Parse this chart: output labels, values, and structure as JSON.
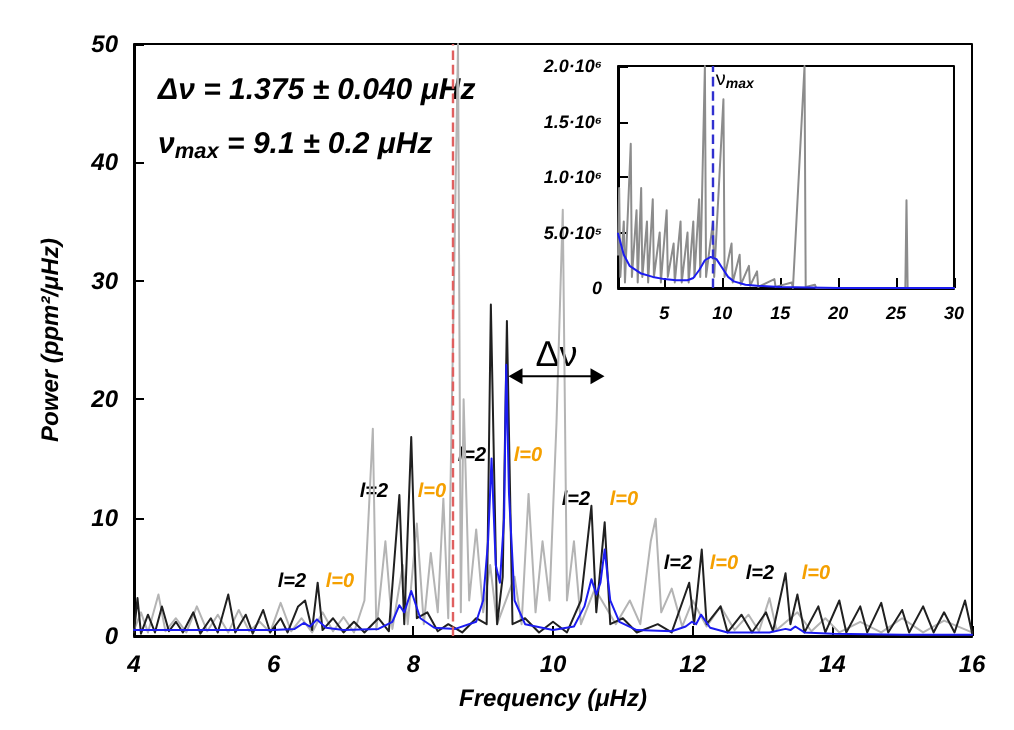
{
  "chart_data": [
    {
      "type": "line",
      "xlabel": "Frequency (μHz)",
      "ylabel": "Power (ppm²/μHz)",
      "marker": "none",
      "annotations": [
        "Δν = 1.375 ± 0.040 μHz",
        "ν$_{max}$ = 9.1 ± 0.2 μHz",
        "l=2",
        "l=0",
        "l=2",
        "l=0",
        "l=2",
        "l=0",
        "l=2",
        "l=0",
        "l=2",
        "l=0",
        "l=2",
        "l=0",
        {
          "text": "Δν",
          "x": 10.05,
          "y": 23.8
        }
      ],
      "xlim": [
        4,
        16
      ],
      "xticks": [
        4,
        6,
        8,
        10,
        12,
        14,
        16
      ],
      "ylim": [
        0,
        50
      ],
      "yticks": [
        0,
        10,
        20,
        30,
        40,
        50
      ],
      "ref_lines": [
        {
          "axis": "x",
          "value": 8.55,
          "color": "#e06060",
          "line_style": "dashed"
        }
      ],
      "series": [
        {
          "color": "#b4b4b4",
          "x": [
            4.0,
            4.1,
            4.2,
            4.35,
            4.45,
            4.6,
            4.75,
            4.9,
            5.05,
            5.2,
            5.35,
            5.5,
            5.65,
            5.8,
            5.95,
            6.1,
            6.25,
            6.4,
            6.55,
            6.7,
            6.85,
            7.0,
            7.15,
            7.3,
            7.42,
            7.47,
            7.6,
            7.7,
            7.85,
            7.92,
            8.05,
            8.15,
            8.25,
            8.35,
            8.43,
            8.5,
            8.64,
            8.68,
            8.72,
            8.8,
            8.9,
            9.0,
            9.1,
            9.2,
            9.45,
            9.55,
            9.65,
            9.75,
            9.85,
            9.95,
            10.05,
            10.14,
            10.2,
            10.3,
            10.4,
            10.6,
            10.9,
            11.1,
            11.25,
            11.4,
            11.47,
            11.55,
            11.7,
            11.85,
            12.0,
            12.2,
            12.4,
            12.6,
            12.8,
            12.95,
            13.1,
            13.2,
            13.5,
            13.7,
            13.9,
            14.1,
            14.4,
            14.7,
            15.0,
            15.3,
            15.6,
            16.0
          ],
          "values": [
            0.5,
            2.0,
            0.3,
            3.5,
            0.4,
            1.5,
            0.3,
            2.5,
            0.4,
            1.8,
            0.3,
            2.2,
            0.4,
            1.2,
            0.3,
            2.8,
            0.4,
            1.5,
            0.3,
            2.0,
            0.4,
            1.6,
            0.3,
            3.0,
            17.5,
            0.5,
            8.0,
            0.6,
            6.0,
            1.0,
            9.5,
            1.0,
            7.0,
            2.0,
            11.6,
            1.5,
            50,
            2.0,
            20,
            3.0,
            9.0,
            2.0,
            6,
            1.0,
            5.0,
            1.0,
            12,
            2.0,
            8,
            3,
            18,
            36,
            3.0,
            8.0,
            1.0,
            4.0,
            1.0,
            3.0,
            1.0,
            8.0,
            9.9,
            2.0,
            4.0,
            0.8,
            3.0,
            0.8,
            2.5,
            0.5,
            1.8,
            0.4,
            3.2,
            0.5,
            2.0,
            0.4,
            1.5,
            0.3,
            1.2,
            0.3,
            1.5,
            0.3,
            1.3,
            0.3
          ]
        },
        {
          "color": "#202020",
          "x": [
            4.0,
            4.05,
            4.1,
            4.2,
            4.3,
            4.4,
            4.5,
            4.6,
            4.7,
            4.85,
            4.95,
            5.1,
            5.2,
            5.35,
            5.45,
            5.6,
            5.7,
            5.85,
            5.95,
            6.1,
            6.2,
            6.35,
            6.45,
            6.55,
            6.63,
            6.7,
            6.85,
            7.0,
            7.15,
            7.3,
            7.5,
            7.65,
            7.8,
            7.87,
            7.97,
            8.05,
            8.2,
            8.35,
            8.5,
            8.7,
            8.9,
            9.05,
            9.11,
            9.2,
            9.28,
            9.34,
            9.42,
            9.6,
            9.8,
            10.0,
            10.2,
            10.4,
            10.55,
            10.62,
            10.74,
            10.82,
            11.0,
            11.2,
            11.5,
            11.7,
            11.95,
            12.02,
            12.13,
            12.2,
            12.4,
            12.5,
            12.7,
            12.85,
            13.05,
            13.15,
            13.33,
            13.4,
            13.5,
            13.6,
            13.8,
            13.9,
            14.1,
            14.2,
            14.4,
            14.5,
            14.7,
            14.8,
            15.0,
            15.1,
            15.3,
            15.45,
            15.6,
            15.75,
            15.9,
            16.0
          ],
          "values": [
            0.3,
            3.2,
            0.2,
            1.8,
            0.3,
            2.5,
            0.4,
            1.2,
            0.3,
            2.0,
            0.2,
            1.5,
            0.3,
            3.5,
            0.3,
            1.8,
            0.2,
            2.2,
            0.3,
            1.5,
            0.3,
            2.5,
            3.0,
            0.5,
            4.5,
            0.5,
            1.5,
            0.3,
            1.2,
            0.3,
            1.5,
            0.4,
            11.9,
            1.0,
            16.8,
            1.5,
            2.0,
            0.4,
            1.0,
            0.3,
            1.5,
            1.0,
            28,
            1.0,
            5.0,
            26.6,
            1.0,
            1.5,
            0.3,
            1.2,
            0.3,
            3.0,
            11.0,
            2.0,
            9.6,
            1.0,
            1.5,
            0.3,
            1.0,
            0.3,
            4.5,
            1.0,
            7.3,
            1.0,
            2.5,
            0.3,
            1.8,
            0.3,
            2.0,
            0.4,
            5.3,
            1.0,
            3.5,
            0.3,
            2.5,
            0.3,
            3.0,
            0.3,
            2.5,
            0.3,
            2.8,
            0.3,
            2.2,
            0.3,
            2.5,
            0.3,
            2.0,
            0.3,
            3.0,
            0.3
          ]
        },
        {
          "color": "#1c1cf0",
          "x": [
            4.0,
            5.0,
            6.0,
            6.3,
            6.43,
            6.52,
            6.62,
            6.75,
            7.0,
            7.5,
            7.7,
            7.8,
            7.87,
            7.97,
            8.1,
            8.3,
            8.6,
            8.9,
            9.0,
            9.07,
            9.12,
            9.18,
            9.24,
            9.3,
            9.33,
            9.37,
            9.45,
            9.6,
            10.0,
            10.3,
            10.45,
            10.55,
            10.62,
            10.68,
            10.74,
            10.82,
            10.95,
            11.2,
            11.7,
            11.9,
            11.99,
            12.05,
            12.12,
            12.25,
            12.5,
            13.1,
            13.33,
            13.4,
            13.47,
            13.6,
            14.0,
            15.0,
            16.0
          ],
          "values": [
            0.5,
            0.5,
            0.5,
            0.6,
            1.1,
            0.8,
            1.4,
            0.7,
            0.5,
            0.6,
            1.2,
            2.6,
            2.0,
            3.8,
            1.5,
            0.7,
            0.6,
            1.2,
            3.0,
            8,
            15.0,
            6,
            4.5,
            10,
            22.9,
            12,
            3.0,
            1.0,
            0.5,
            0.8,
            2.5,
            4.8,
            3.5,
            4.5,
            7.3,
            3,
            1.2,
            0.5,
            0.4,
            0.8,
            1.2,
            1.0,
            1.8,
            0.7,
            0.3,
            0.3,
            0.6,
            0.5,
            0.8,
            0.3,
            0.2,
            0.1,
            0.1
          ]
        }
      ]
    },
    {
      "type": "line",
      "marker": "none",
      "xlim": [
        1,
        30
      ],
      "xticks": [
        5,
        10,
        15,
        20,
        25,
        30
      ],
      "ylim": [
        0,
        2000000
      ],
      "yticks": [
        0,
        {
          "value": 500000,
          "label": "5.0·10⁵"
        },
        {
          "value": 1000000,
          "label": "1.0·10⁶"
        },
        {
          "value": 1500000,
          "label": "1.5·10⁶"
        },
        {
          "value": 2000000,
          "label": "2.0·10⁶"
        }
      ],
      "ref_lines": [
        {
          "axis": "x",
          "value": 9.1,
          "label": "ν$_{max}$",
          "color": "#3030d0",
          "line_style": "dashed"
        }
      ],
      "series": [
        {
          "color": "#8c8c8c",
          "x": [
            1.0,
            1.1,
            1.2,
            1.5,
            1.6,
            2.1,
            2.2,
            2.6,
            2.7,
            3.0,
            3.1,
            3.5,
            3.6,
            4.0,
            4.1,
            4.6,
            4.7,
            5.2,
            5.3,
            5.8,
            5.9,
            6.4,
            6.5,
            7.0,
            7.1,
            7.5,
            7.6,
            8.0,
            8.1,
            8.5,
            8.6,
            9.2,
            9.3,
            10.1,
            10.2,
            10.8,
            10.9,
            11.5,
            11.6,
            12.3,
            12.4,
            13.0,
            13.1,
            14.5,
            14.6,
            16.0,
            16.1,
            17.1,
            17.2,
            18,
            18.1,
            20,
            25.8,
            25.9,
            26.0,
            30
          ],
          "values": [
            300000,
            900000,
            100000,
            600000,
            50000,
            1300000,
            100000,
            700000,
            50000,
            900000,
            100000,
            600000,
            50000,
            800000,
            100000,
            500000,
            50000,
            700000,
            100000,
            400000,
            50000,
            600000,
            50000,
            500000,
            50000,
            600000,
            100000,
            800000,
            100000,
            2000000,
            100000,
            600000,
            100000,
            1700000,
            100000,
            400000,
            50000,
            300000,
            30000,
            200000,
            20000,
            150000,
            10000,
            80000,
            10000,
            50000,
            0,
            2000000,
            10000,
            30000,
            0,
            0,
            0,
            790000,
            0,
            0
          ]
        },
        {
          "color": "#1c1cf0",
          "x": [
            1,
            1.5,
            2,
            3,
            4,
            5,
            6,
            7,
            7.5,
            8,
            8.5,
            9,
            9.5,
            10,
            10.5,
            11,
            12,
            13,
            15,
            20,
            25,
            30
          ],
          "values": [
            490000,
            300000,
            200000,
            130000,
            100000,
            80000,
            70000,
            70000,
            90000,
            160000,
            250000,
            280000,
            260000,
            180000,
            100000,
            60000,
            30000,
            20000,
            10000,
            0,
            0,
            0
          ]
        }
      ]
    }
  ]
}
